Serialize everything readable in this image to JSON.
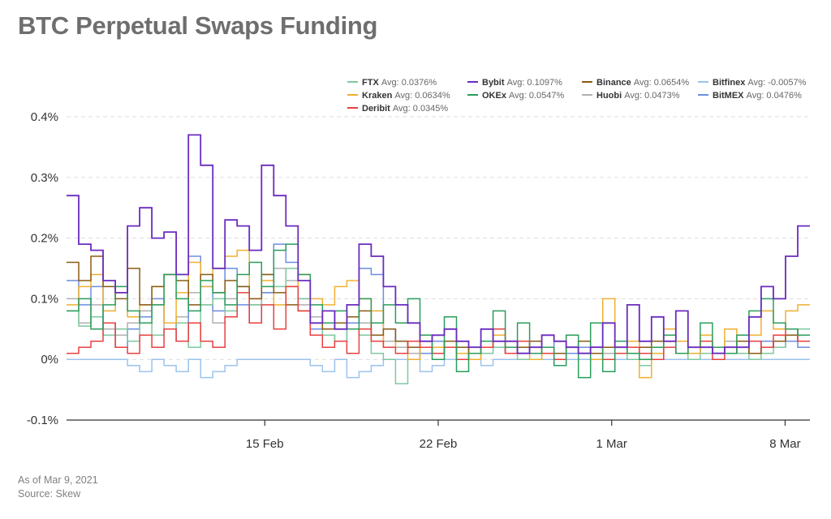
{
  "title": "BTC Perpetual Swaps Funding",
  "footer": {
    "line1": "As of Mar 9, 2021",
    "line2": "Source: Skew"
  },
  "chart_data": {
    "type": "line",
    "title": "BTC Perpetual Swaps Funding",
    "x_range": [
      "2021-02-07",
      "2021-03-09"
    ],
    "ylim": [
      -0.1,
      0.4
    ],
    "yticks": [
      -0.1,
      0,
      0.1,
      0.2,
      0.3,
      0.4
    ],
    "ytick_labels": [
      "-0.1%",
      "0%",
      "0.1%",
      "0.2%",
      "0.3%",
      "0.4%"
    ],
    "xticks": [
      "2021-02-15",
      "2021-02-22",
      "2021-03-01",
      "2021-03-08"
    ],
    "xtick_labels": [
      "15 Feb",
      "22 Feb",
      "1 Mar",
      "8 Mar"
    ],
    "grid": "horizontal",
    "legend_position": "top-right",
    "series": [
      {
        "name": "FTX",
        "avg_label": "Avg: 0.0376%",
        "color": "#7ec8a0",
        "values": [
          0.08,
          0.055,
          0.07,
          0.04,
          0.05,
          0.03,
          0.06,
          0.04,
          0.05,
          0.06,
          0.02,
          0.09,
          0.1,
          0.08,
          0.12,
          0.09,
          0.14,
          0.12,
          0.15,
          0.1,
          0.06,
          0.04,
          0.03,
          0.05,
          0.04,
          0.01,
          0.0,
          -0.04,
          0.0,
          0.02,
          0.01,
          0.02,
          0.01,
          0.0,
          0.01,
          0.02,
          0.02,
          0.0,
          0.0,
          0.02,
          0.01,
          0.02,
          0.03,
          0.01,
          0.0,
          0.02,
          0.0,
          -0.01,
          0.0,
          0.03,
          0.01,
          0.0,
          0.01,
          0.02,
          0.02,
          0.01,
          0.0,
          0.01,
          0.02,
          0.04,
          0.05
        ]
      },
      {
        "name": "Bybit",
        "avg_label": "Avg: 0.1097%",
        "color": "#6a2bbf",
        "values": [
          0.27,
          0.19,
          0.18,
          0.13,
          0.11,
          0.22,
          0.25,
          0.2,
          0.21,
          0.14,
          0.37,
          0.32,
          0.15,
          0.23,
          0.22,
          0.18,
          0.32,
          0.27,
          0.22,
          0.13,
          0.06,
          0.08,
          0.05,
          0.09,
          0.19,
          0.17,
          0.12,
          0.09,
          0.06,
          0.03,
          0.04,
          0.05,
          0.03,
          0.02,
          0.05,
          0.03,
          0.03,
          0.01,
          0.02,
          0.04,
          0.03,
          0.02,
          0.01,
          0.02,
          0.06,
          0.02,
          0.09,
          0.03,
          0.07,
          0.03,
          0.08,
          0.02,
          0.02,
          0.01,
          0.02,
          0.02,
          0.07,
          0.12,
          0.1,
          0.17,
          0.22
        ]
      },
      {
        "name": "Binance",
        "avg_label": "Avg: 0.0654%",
        "color": "#8b5a14",
        "values": [
          0.16,
          0.13,
          0.17,
          0.12,
          0.1,
          0.15,
          0.09,
          0.12,
          0.14,
          0.13,
          0.09,
          0.14,
          0.11,
          0.13,
          0.12,
          0.1,
          0.14,
          0.11,
          0.09,
          0.08,
          0.06,
          0.05,
          0.06,
          0.07,
          0.08,
          0.04,
          0.05,
          0.03,
          0.02,
          0.02,
          0.01,
          0.03,
          0.02,
          0.01,
          0.02,
          0.03,
          0.01,
          0.02,
          0.03,
          0.02,
          0.01,
          0.02,
          0.03,
          0.01,
          0.02,
          0.03,
          0.01,
          0.02,
          0.03,
          0.02,
          0.01,
          0.02,
          0.02,
          0.01,
          0.02,
          0.03,
          0.01,
          0.02,
          0.03,
          0.04,
          0.03
        ]
      },
      {
        "name": "Bitfinex",
        "avg_label": "Avg: -0.0057%",
        "color": "#9cc3ee",
        "values": [
          0.0,
          0.0,
          0.0,
          0.0,
          0.0,
          -0.01,
          -0.02,
          0.0,
          -0.01,
          -0.02,
          0.0,
          -0.03,
          -0.02,
          -0.01,
          0.0,
          0.0,
          0.0,
          0.0,
          0.0,
          0.0,
          -0.01,
          -0.02,
          0.0,
          -0.03,
          -0.02,
          -0.01,
          0.0,
          0.0,
          0.0,
          -0.02,
          -0.01,
          0.0,
          0.0,
          0.0,
          -0.01,
          0.0,
          0.0,
          0.0,
          0.0,
          0.0,
          0.0,
          0.0,
          0.0,
          0.0,
          0.0,
          0.0,
          0.0,
          0.0,
          0.0,
          0.0,
          0.0,
          0.0,
          0.0,
          0.0,
          0.0,
          0.0,
          0.0,
          0.0,
          0.0,
          0.0,
          0.0
        ]
      },
      {
        "name": "Kraken",
        "avg_label": "Avg: 0.0634%",
        "color": "#f0b030",
        "values": [
          0.09,
          0.12,
          0.14,
          0.08,
          0.11,
          0.07,
          0.09,
          0.12,
          0.06,
          0.11,
          0.16,
          0.12,
          0.15,
          0.17,
          0.18,
          0.1,
          0.13,
          0.09,
          0.12,
          0.14,
          0.1,
          0.09,
          0.12,
          0.13,
          0.1,
          0.08,
          0.02,
          0.03,
          0.0,
          0.04,
          0.02,
          0.03,
          0.01,
          0.0,
          0.03,
          0.04,
          0.02,
          0.01,
          0.0,
          0.04,
          0.03,
          0.02,
          0.01,
          0.0,
          0.1,
          0.02,
          0.03,
          -0.03,
          0.01,
          0.05,
          0.03,
          0.01,
          0.04,
          0.02,
          0.05,
          0.03,
          0.04,
          0.08,
          0.05,
          0.08,
          0.09
        ]
      },
      {
        "name": "OKEx",
        "avg_label": "Avg: 0.0547%",
        "color": "#2a9d5c",
        "values": [
          0.08,
          0.1,
          0.05,
          0.09,
          0.12,
          0.08,
          0.06,
          0.09,
          0.14,
          0.1,
          0.08,
          0.13,
          0.11,
          0.09,
          0.14,
          0.16,
          0.12,
          0.18,
          0.19,
          0.14,
          0.09,
          0.06,
          0.08,
          0.05,
          0.1,
          0.06,
          0.09,
          0.06,
          0.1,
          0.04,
          0.0,
          0.07,
          -0.02,
          0.01,
          0.03,
          0.08,
          0.02,
          0.06,
          0.01,
          0.02,
          -0.01,
          0.04,
          -0.03,
          0.06,
          -0.02,
          0.03,
          0.01,
          0.0,
          0.02,
          0.04,
          0.01,
          0.02,
          0.06,
          0.02,
          0.01,
          0.04,
          0.08,
          0.1,
          0.06,
          0.05,
          0.04
        ]
      },
      {
        "name": "Huobi",
        "avg_label": "Avg: 0.0473%",
        "color": "#b0b0b0",
        "values": [
          0.1,
          0.06,
          0.09,
          0.05,
          0.04,
          0.06,
          0.08,
          0.09,
          0.05,
          0.07,
          0.11,
          0.09,
          0.06,
          0.1,
          0.12,
          0.09,
          0.11,
          0.15,
          0.13,
          0.09,
          0.07,
          0.06,
          0.05,
          0.07,
          0.06,
          0.04,
          0.03,
          0.02,
          0.01,
          0.02,
          0.03,
          0.02,
          0.01,
          0.02,
          0.03,
          0.02,
          0.01,
          0.02,
          0.03,
          0.02,
          0.01,
          0.02,
          0.03,
          0.02,
          0.01,
          0.02,
          0.03,
          0.02,
          0.01,
          0.02,
          0.03,
          0.02,
          0.01,
          0.02,
          0.03,
          0.02,
          0.01,
          0.02,
          0.03,
          0.04,
          0.03
        ]
      },
      {
        "name": "BitMEX",
        "avg_label": "Avg: 0.0476%",
        "color": "#6b8ee0",
        "values": [
          0.13,
          0.09,
          0.12,
          0.06,
          0.02,
          0.05,
          0.07,
          0.1,
          0.06,
          0.03,
          0.17,
          0.12,
          0.08,
          0.15,
          0.09,
          0.06,
          0.11,
          0.19,
          0.16,
          0.1,
          0.05,
          0.04,
          0.03,
          0.06,
          0.15,
          0.14,
          0.05,
          0.03,
          0.02,
          0.01,
          0.03,
          0.02,
          0.01,
          0.02,
          0.03,
          0.02,
          0.01,
          0.02,
          0.01,
          0.02,
          0.03,
          0.01,
          0.02,
          0.01,
          0.02,
          0.01,
          0.02,
          0.03,
          0.01,
          0.02,
          0.01,
          0.02,
          0.01,
          0.02,
          0.01,
          0.02,
          0.01,
          0.03,
          0.02,
          0.03,
          0.02
        ]
      },
      {
        "name": "Deribit",
        "avg_label": "Avg: 0.0345%",
        "color": "#e84040",
        "values": [
          0.01,
          0.02,
          0.03,
          0.06,
          0.02,
          0.01,
          0.04,
          0.02,
          0.05,
          0.03,
          0.06,
          0.03,
          0.02,
          0.07,
          0.11,
          0.06,
          0.09,
          0.05,
          0.12,
          0.08,
          0.04,
          0.02,
          0.03,
          0.01,
          0.05,
          0.03,
          0.02,
          0.01,
          0.03,
          0.02,
          0.01,
          0.02,
          0.0,
          0.01,
          0.02,
          0.05,
          0.01,
          0.03,
          0.02,
          0.01,
          0.0,
          0.02,
          0.01,
          0.02,
          0.0,
          0.01,
          0.02,
          0.01,
          0.0,
          0.02,
          0.01,
          0.02,
          0.03,
          0.0,
          0.01,
          0.02,
          0.03,
          0.02,
          0.04,
          0.05,
          0.03
        ]
      }
    ]
  }
}
